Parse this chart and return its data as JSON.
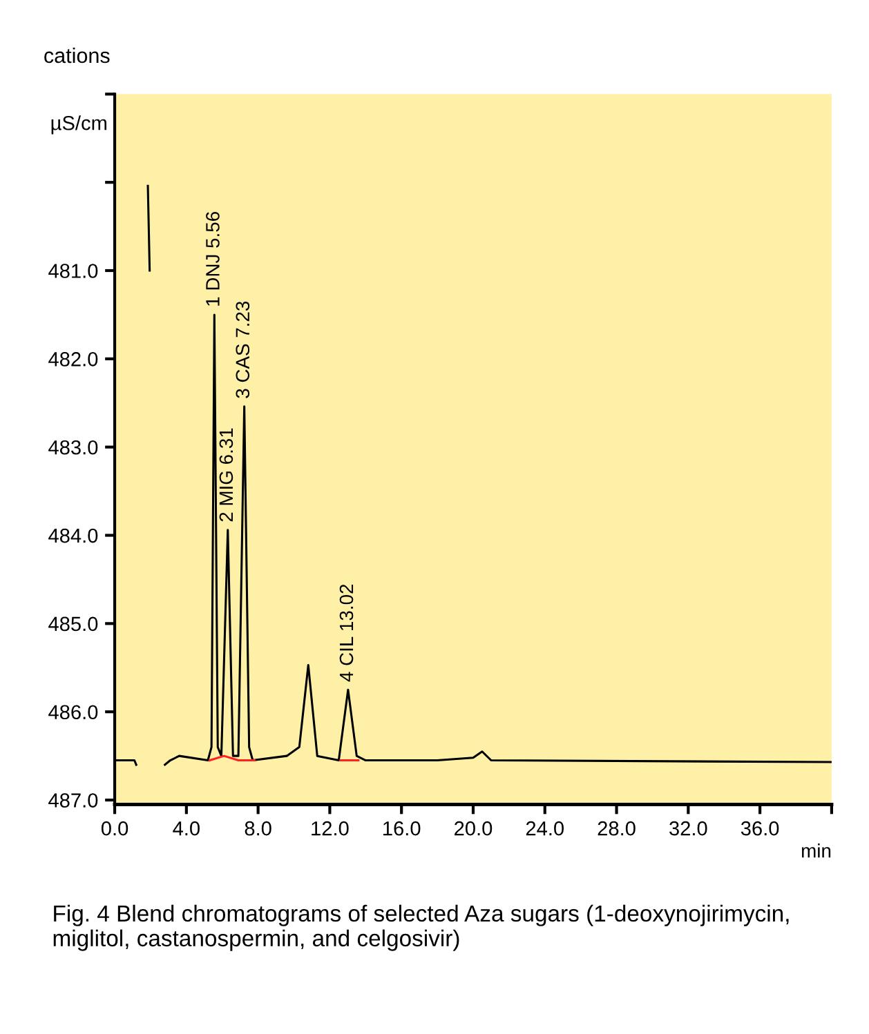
{
  "chart_data": {
    "type": "line",
    "title": "cations",
    "ylabel": "µS/cm",
    "xlabel": "min",
    "xlim": [
      0,
      40
    ],
    "xticks": [
      {
        "value": 0,
        "label": "0.0"
      },
      {
        "value": 4,
        "label": "4.0"
      },
      {
        "value": 8,
        "label": "8.0"
      },
      {
        "value": 12,
        "label": "12.0"
      },
      {
        "value": 16,
        "label": "16.0"
      },
      {
        "value": 20,
        "label": "20.0"
      },
      {
        "value": 24,
        "label": "24.0"
      },
      {
        "value": 28,
        "label": "28.0"
      },
      {
        "value": 32,
        "label": "32.0"
      },
      {
        "value": 36,
        "label": "36.0"
      },
      {
        "value": 40,
        "label": null
      }
    ],
    "ylim": [
      487.05,
      479.0
    ],
    "yticks": [
      {
        "value": 479,
        "label": null
      },
      {
        "value": 480,
        "label": null
      },
      {
        "value": 481,
        "label": "481.0"
      },
      {
        "value": 482,
        "label": "482.0"
      },
      {
        "value": 483,
        "label": "483.0"
      },
      {
        "value": 484,
        "label": "484.0"
      },
      {
        "value": 485,
        "label": "485.0"
      },
      {
        "value": 486,
        "label": "486.0"
      },
      {
        "value": 487,
        "label": "487.0"
      }
    ],
    "grid": false,
    "marker": "none",
    "line_style": "solid",
    "series": [
      {
        "color": "#000000",
        "x": [
          0,
          1.1,
          1.2,
          1.4,
          1.6,
          1.85,
          1.95,
          2.0,
          2.2,
          2.4,
          2.7,
          2.8,
          3.1,
          3.6,
          5.2,
          5.4,
          5.56,
          5.75,
          5.95,
          6.31,
          6.6,
          6.9,
          7.23,
          7.5,
          7.7,
          9.6,
          10.3,
          10.8,
          11.3,
          12.5,
          13.02,
          13.5,
          14,
          18,
          20.0,
          20.5,
          21,
          40
        ],
        "values": [
          486.55,
          486.55,
          486.6,
          null,
          null,
          480.04,
          481.0,
          null,
          null,
          null,
          null,
          486.6,
          486.55,
          486.5,
          486.55,
          486.4,
          481.5,
          486.4,
          486.5,
          483.94,
          486.5,
          486.5,
          482.54,
          486.4,
          486.55,
          486.5,
          486.4,
          485.47,
          486.5,
          486.55,
          485.75,
          486.5,
          486.55,
          486.55,
          486.52,
          486.45,
          486.55,
          486.57
        ]
      },
      {
        "color": "#ff2020",
        "x": [
          5.3,
          6.1,
          6.9,
          7.8,
          10,
          12.6,
          13.6
        ],
        "values": [
          486.55,
          486.5,
          486.55,
          486.55,
          null,
          486.55,
          486.55
        ]
      }
    ],
    "annotations": [
      {
        "text": "1 DNJ 5.56",
        "x": 5.56,
        "y": 481.5
      },
      {
        "text": "2 MIG 6.31",
        "x": 6.31,
        "y": 483.94
      },
      {
        "text": "3 CAS 7.23",
        "x": 7.23,
        "y": 482.54
      },
      {
        "text": "4 CIL 13.02",
        "x": 13.02,
        "y": 485.75
      },
      "Fig. 4 Blend chromatograms of selected Aza sugars (1-deoxynojirimycin, miglitol, castanospermin, and celgosivir)"
    ]
  }
}
